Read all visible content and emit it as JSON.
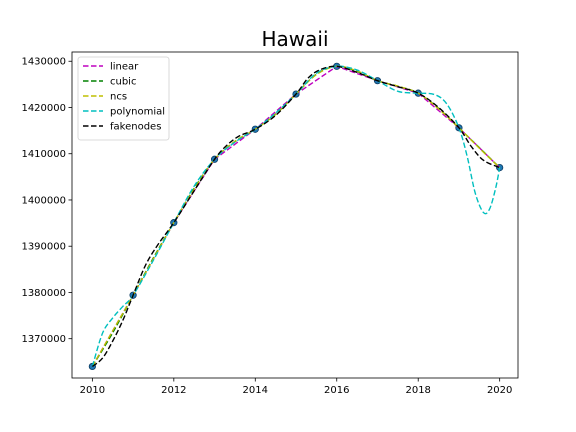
{
  "chart_data": {
    "type": "line",
    "title": "Hawaii",
    "xlabel": "",
    "ylabel": "",
    "xlim": [
      2009.5,
      2020.45
    ],
    "ylim": [
      1361500,
      1432000
    ],
    "x_ticks": [
      2010,
      2012,
      2014,
      2016,
      2018,
      2020
    ],
    "y_ticks": [
      1370000,
      1380000,
      1390000,
      1400000,
      1410000,
      1420000,
      1430000
    ],
    "grid": false,
    "legend": {
      "position": "top-left"
    },
    "data_points": {
      "name": "",
      "color": "#1f77b4",
      "x": [
        2010,
        2011,
        2012,
        2013,
        2014,
        2015,
        2016,
        2017,
        2018,
        2019,
        2020
      ],
      "y": [
        1364000,
        1379400,
        1395100,
        1408800,
        1415300,
        1422900,
        1428900,
        1425800,
        1423100,
        1415600,
        1407000
      ]
    },
    "series": [
      {
        "name": "linear",
        "color": "#bf00bf",
        "x": [
          2010,
          2011,
          2012,
          2013,
          2014,
          2015,
          2016,
          2017,
          2018,
          2019,
          2020
        ],
        "y": [
          1364000,
          1379400,
          1395100,
          1408800,
          1415300,
          1422900,
          1428900,
          1425800,
          1423100,
          1415600,
          1407000
        ]
      },
      {
        "name": "cubic",
        "color": "#008000",
        "x": [
          2010,
          2010.5,
          2011,
          2011.5,
          2012,
          2012.5,
          2013,
          2013.5,
          2014,
          2014.5,
          2015,
          2015.5,
          2016,
          2016.5,
          2017,
          2017.5,
          2018,
          2018.5,
          2019,
          2019.5,
          2020
        ],
        "y": [
          1364000,
          1371300,
          1379400,
          1387500,
          1395100,
          1402500,
          1408800,
          1412600,
          1415300,
          1418600,
          1422900,
          1427200,
          1428900,
          1427800,
          1425800,
          1424600,
          1423100,
          1419800,
          1415600,
          1411300,
          1407000
        ]
      },
      {
        "name": "ncs",
        "color": "#bfbf00",
        "x": [
          2010,
          2010.5,
          2011,
          2011.5,
          2012,
          2012.5,
          2013,
          2013.5,
          2014,
          2014.5,
          2015,
          2015.5,
          2016,
          2016.5,
          2017,
          2017.5,
          2018,
          2018.5,
          2019,
          2019.5,
          2020
        ],
        "y": [
          1364000,
          1371700,
          1379400,
          1387300,
          1395100,
          1402300,
          1408800,
          1412700,
          1415300,
          1418500,
          1422900,
          1427100,
          1428900,
          1427900,
          1425800,
          1424600,
          1423100,
          1419700,
          1415600,
          1411200,
          1407000
        ]
      },
      {
        "name": "polynomial",
        "color": "#00bfbf",
        "x": [
          2010,
          2010.25,
          2010.5,
          2010.75,
          2011,
          2011.5,
          2012,
          2012.5,
          2013,
          2013.5,
          2014,
          2014.5,
          2015,
          2015.5,
          2016,
          2016.5,
          2017,
          2017.5,
          2018,
          2018.4,
          2018.7,
          2019,
          2019.2,
          2019.4,
          2019.6,
          2019.75,
          2019.9,
          2020
        ],
        "y": [
          1364000,
          1371200,
          1374500,
          1377000,
          1379400,
          1387000,
          1395100,
          1403000,
          1408800,
          1412500,
          1415300,
          1418800,
          1422900,
          1427400,
          1428900,
          1428100,
          1425800,
          1423500,
          1423100,
          1422800,
          1420800,
          1415600,
          1409500,
          1401500,
          1397300,
          1398000,
          1402500,
          1407000
        ]
      },
      {
        "name": "fakenodes",
        "color": "#000000",
        "x": [
          2010,
          2010.25,
          2010.5,
          2010.75,
          2011,
          2011.3,
          2011.6,
          2012,
          2012.5,
          2013,
          2013.3,
          2013.6,
          2014,
          2014.5,
          2015,
          2015.3,
          2015.6,
          2016,
          2016.5,
          2017,
          2017.5,
          2018,
          2018.5,
          2019,
          2019.3,
          2019.6,
          2020
        ],
        "y": [
          1364000,
          1365800,
          1369500,
          1374000,
          1379400,
          1385800,
          1390200,
          1395100,
          1402000,
          1408800,
          1411800,
          1413800,
          1415300,
          1418300,
          1422900,
          1426400,
          1428200,
          1428900,
          1427600,
          1425800,
          1424500,
          1423100,
          1420000,
          1415600,
          1411600,
          1408600,
          1407000
        ]
      }
    ]
  }
}
